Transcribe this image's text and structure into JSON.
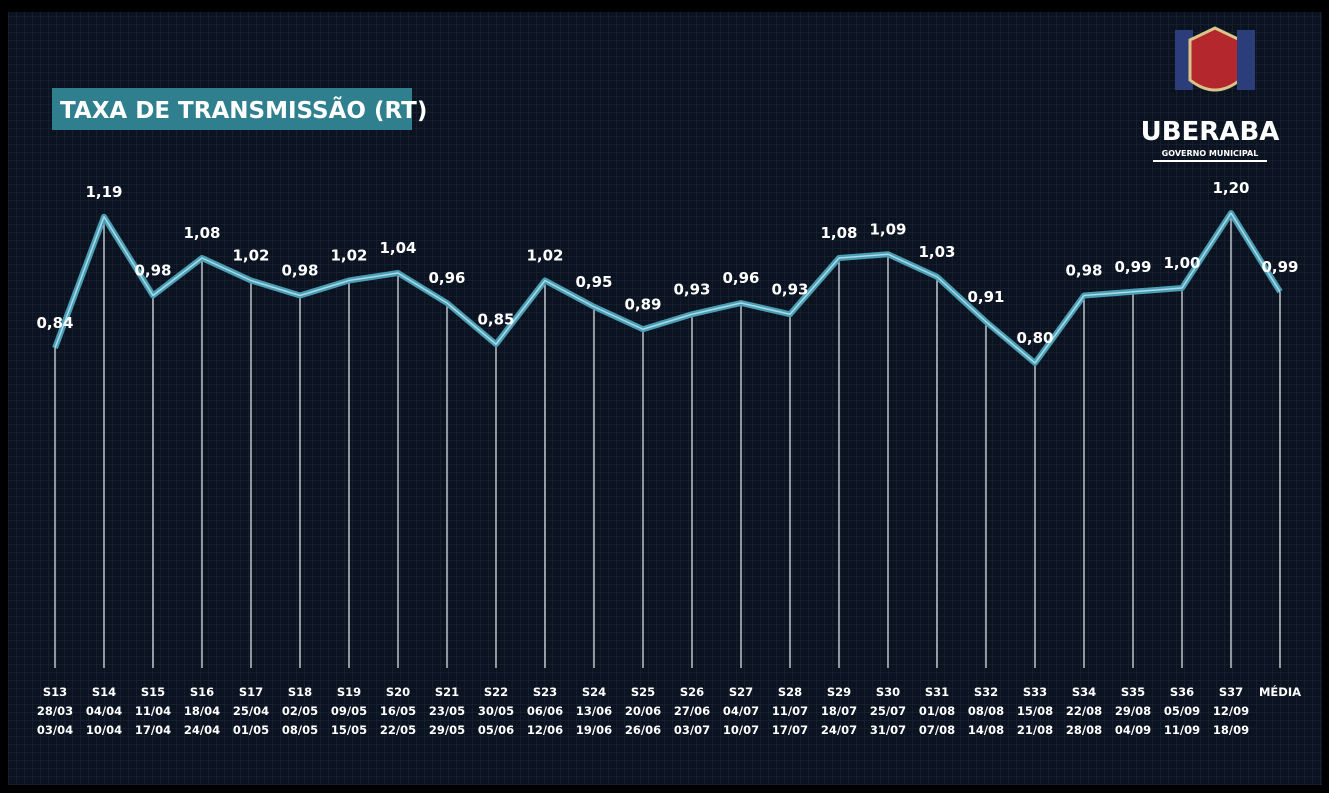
{
  "chart_data": {
    "type": "line",
    "title": "TAXA DE TRANSMISSÃO (RT)",
    "logo": {
      "name": "UBERABA",
      "subtitle": "GOVERNO MUNICIPAL"
    },
    "categories": [
      [
        "S13",
        "28/03",
        "03/04"
      ],
      [
        "S14",
        "04/04",
        "10/04"
      ],
      [
        "S15",
        "11/04",
        "17/04"
      ],
      [
        "S16",
        "18/04",
        "24/04"
      ],
      [
        "S17",
        "25/04",
        "01/05"
      ],
      [
        "S18",
        "02/05",
        "08/05"
      ],
      [
        "S19",
        "09/05",
        "15/05"
      ],
      [
        "S20",
        "16/05",
        "22/05"
      ],
      [
        "S21",
        "23/05",
        "29/05"
      ],
      [
        "S22",
        "30/05",
        "05/06"
      ],
      [
        "S23",
        "06/06",
        "12/06"
      ],
      [
        "S24",
        "13/06",
        "19/06"
      ],
      [
        "S25",
        "20/06",
        "26/06"
      ],
      [
        "S26",
        "27/06",
        "03/07"
      ],
      [
        "S27",
        "04/07",
        "10/07"
      ],
      [
        "S28",
        "11/07",
        "17/07"
      ],
      [
        "S29",
        "18/07",
        "24/07"
      ],
      [
        "S30",
        "25/07",
        "31/07"
      ],
      [
        "S31",
        "01/08",
        "07/08"
      ],
      [
        "S32",
        "08/08",
        "14/08"
      ],
      [
        "S33",
        "15/08",
        "21/08"
      ],
      [
        "S34",
        "22/08",
        "28/08"
      ],
      [
        "S35",
        "29/08",
        "04/09"
      ],
      [
        "S36",
        "05/09",
        "11/09"
      ],
      [
        "S37",
        "12/09",
        "18/09"
      ],
      [
        "MÉDIA"
      ]
    ],
    "values": [
      0.84,
      1.19,
      0.98,
      1.08,
      1.02,
      0.98,
      1.02,
      1.04,
      0.96,
      0.85,
      1.02,
      0.95,
      0.89,
      0.93,
      0.96,
      0.93,
      1.08,
      1.09,
      1.03,
      0.91,
      0.8,
      0.98,
      0.99,
      1.0,
      1.2,
      0.99
    ],
    "value_labels": [
      "0,84",
      "1,19",
      "0,98",
      "1,08",
      "1,02",
      "0,98",
      "1,02",
      "1,04",
      "0,96",
      "0,85",
      "1,02",
      "0,95",
      "0,89",
      "0,93",
      "0,96",
      "0,93",
      "1,08",
      "1,09",
      "1,03",
      "0,91",
      "0,80",
      "0,98",
      "0,99",
      "1,00",
      "1,20",
      "0,99"
    ],
    "color": "#4a9db3"
  }
}
